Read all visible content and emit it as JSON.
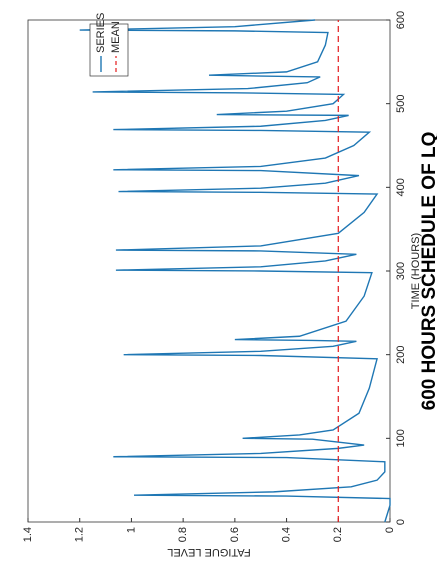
{
  "chart_data": {
    "type": "line",
    "title": "600 HOURS SCHEDULE OF LQ",
    "x_label": "TIME (HOURS)",
    "y_label": "FATIGUE LEVEL",
    "x": [
      0,
      10,
      20,
      28,
      31,
      32,
      36,
      42,
      50,
      60,
      72,
      77,
      78,
      82,
      88,
      92,
      99,
      100,
      104,
      110,
      130,
      160,
      195,
      199,
      200,
      204,
      210,
      216,
      217,
      218,
      222,
      240,
      270,
      298,
      300,
      301,
      305,
      312,
      320,
      324,
      325,
      330,
      345,
      370,
      392,
      394,
      395,
      399,
      405,
      414,
      420,
      421,
      425,
      435,
      450,
      466,
      468,
      469,
      473,
      480,
      486,
      487,
      491,
      500,
      511,
      513,
      514,
      518,
      525,
      532,
      533,
      534,
      538,
      550,
      570,
      585,
      587,
      588,
      592,
      600
    ],
    "series": [
      {
        "name": "SERIES",
        "color": "#1f77b4",
        "values": [
          0.02,
          0.01,
          0,
          0,
          0.4,
          0.99,
          0.45,
          0.15,
          0.05,
          0.02,
          0.02,
          0.4,
          1.07,
          0.5,
          0.2,
          0.1,
          0.3,
          0.57,
          0.35,
          0.22,
          0.12,
          0.08,
          0.05,
          0.5,
          1.03,
          0.5,
          0.22,
          0.13,
          0.3,
          0.6,
          0.35,
          0.17,
          0.1,
          0.07,
          0.5,
          1.06,
          0.5,
          0.25,
          0.13,
          0.5,
          1.06,
          0.5,
          0.2,
          0.1,
          0.05,
          0.5,
          1.05,
          0.5,
          0.25,
          0.12,
          0.5,
          1.07,
          0.5,
          0.25,
          0.14,
          0.08,
          0.5,
          1.07,
          0.5,
          0.25,
          0.16,
          0.67,
          0.4,
          0.22,
          0.18,
          0.6,
          1.15,
          0.55,
          0.32,
          0.27,
          0.5,
          0.7,
          0.4,
          0.28,
          0.25,
          0.24,
          0.6,
          1.2,
          0.6,
          0.29
        ]
      }
    ],
    "mean": {
      "name": "MEAN",
      "value": 0.2,
      "color": "#e41a1c"
    },
    "xlim": [
      0,
      600
    ],
    "xticks": [
      0,
      100,
      200,
      300,
      400,
      500,
      600
    ],
    "ylim": [
      0,
      1.4
    ],
    "yticks": [
      0,
      0.2,
      0.4,
      0.6,
      0.8,
      1,
      1.2,
      1.4
    ],
    "legend": "upper-right"
  }
}
